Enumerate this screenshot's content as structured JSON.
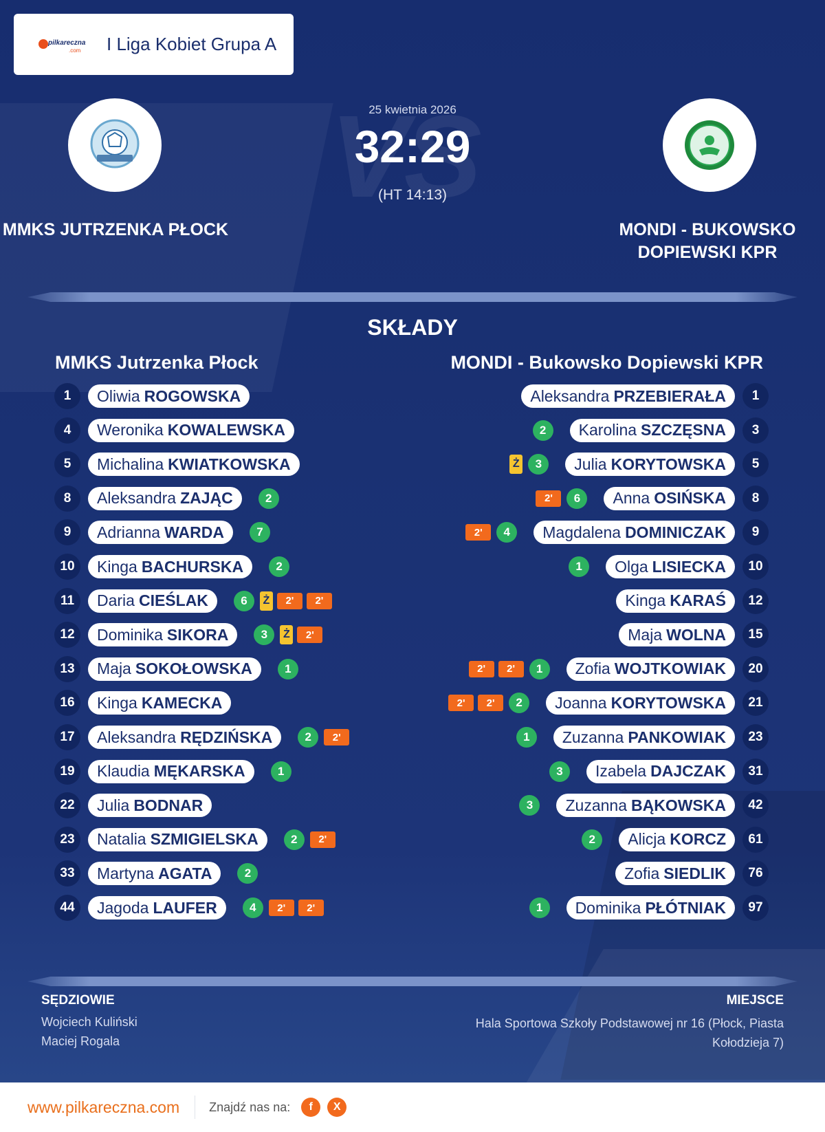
{
  "brand": {
    "logo_text": "pilkareczna",
    "logo_sub": ".com"
  },
  "league": {
    "name": "I Liga Kobiet Grupa A"
  },
  "match": {
    "date": "25 kwietnia 2026",
    "score": "32:29",
    "halftime": "(HT 14:13)",
    "vs_text": "VS"
  },
  "teams": {
    "home": {
      "name": "MMKS JUTRZENKA PŁOCK",
      "roster_title": "MMKS Jutrzenka Płock"
    },
    "away": {
      "name": "MONDI - BUKOWSKO DOPIEWSKI KPR",
      "roster_title": "MONDI - Bukowsko Dopiewski KPR"
    }
  },
  "lineups_title": "SKŁADY",
  "home_players": [
    {
      "number": "1",
      "first": "Oliwia",
      "last": "ROGOWSKA",
      "goals": null,
      "yellow": null,
      "suspensions": []
    },
    {
      "number": "4",
      "first": "Weronika",
      "last": "KOWALEWSKA",
      "goals": null,
      "yellow": null,
      "suspensions": []
    },
    {
      "number": "5",
      "first": "Michalina",
      "last": "KWIATKOWSKA",
      "goals": null,
      "yellow": null,
      "suspensions": []
    },
    {
      "number": "8",
      "first": "Aleksandra",
      "last": "ZAJĄC",
      "goals": "2",
      "yellow": null,
      "suspensions": []
    },
    {
      "number": "9",
      "first": "Adrianna",
      "last": "WARDA",
      "goals": "7",
      "yellow": null,
      "suspensions": []
    },
    {
      "number": "10",
      "first": "Kinga",
      "last": "BACHURSKA",
      "goals": "2",
      "yellow": null,
      "suspensions": []
    },
    {
      "number": "11",
      "first": "Daria",
      "last": "CIEŚLAK",
      "goals": "6",
      "yellow": "Ż",
      "suspensions": [
        "2'",
        "2'"
      ]
    },
    {
      "number": "12",
      "first": "Dominika",
      "last": "SIKORA",
      "goals": "3",
      "yellow": "Ż",
      "suspensions": [
        "2'"
      ]
    },
    {
      "number": "13",
      "first": "Maja",
      "last": "SOKOŁOWSKA",
      "goals": "1",
      "yellow": null,
      "suspensions": []
    },
    {
      "number": "16",
      "first": "Kinga",
      "last": "KAMECKA",
      "goals": null,
      "yellow": null,
      "suspensions": []
    },
    {
      "number": "17",
      "first": "Aleksandra",
      "last": "RĘDZIŃSKA",
      "goals": "2",
      "yellow": null,
      "suspensions": [
        "2'"
      ]
    },
    {
      "number": "19",
      "first": "Klaudia",
      "last": "MĘKARSKA",
      "goals": "1",
      "yellow": null,
      "suspensions": []
    },
    {
      "number": "22",
      "first": "Julia",
      "last": "BODNAR",
      "goals": null,
      "yellow": null,
      "suspensions": []
    },
    {
      "number": "23",
      "first": "Natalia",
      "last": "SZMIGIELSKA",
      "goals": "2",
      "yellow": null,
      "suspensions": [
        "2'"
      ]
    },
    {
      "number": "33",
      "first": "Martyna",
      "last": "AGATA",
      "goals": "2",
      "yellow": null,
      "suspensions": []
    },
    {
      "number": "44",
      "first": "Jagoda",
      "last": "LAUFER",
      "goals": "4",
      "yellow": null,
      "suspensions": [
        "2'",
        "2'"
      ]
    }
  ],
  "away_players": [
    {
      "number": "1",
      "first": "Aleksandra",
      "last": "PRZEBIERAŁA",
      "goals": null,
      "yellow": null,
      "suspensions": []
    },
    {
      "number": "3",
      "first": "Karolina",
      "last": "SZCZĘSNA",
      "goals": "2",
      "yellow": null,
      "suspensions": []
    },
    {
      "number": "5",
      "first": "Julia",
      "last": "KORYTOWSKA",
      "goals": "3",
      "yellow": "Ż",
      "suspensions": []
    },
    {
      "number": "8",
      "first": "Anna",
      "last": "OSIŃSKA",
      "goals": "6",
      "yellow": null,
      "suspensions": [
        "2'"
      ]
    },
    {
      "number": "9",
      "first": "Magdalena",
      "last": "DOMINICZAK",
      "goals": "4",
      "yellow": null,
      "suspensions": [
        "2'"
      ]
    },
    {
      "number": "10",
      "first": "Olga",
      "last": "LISIECKA",
      "goals": "1",
      "yellow": null,
      "suspensions": []
    },
    {
      "number": "12",
      "first": "Kinga",
      "last": "KARAŚ",
      "goals": null,
      "yellow": null,
      "suspensions": []
    },
    {
      "number": "15",
      "first": "Maja",
      "last": "WOLNA",
      "goals": null,
      "yellow": null,
      "suspensions": []
    },
    {
      "number": "20",
      "first": "Zofia",
      "last": "WOJTKOWIAK",
      "goals": "1",
      "yellow": null,
      "suspensions": [
        "2'",
        "2'"
      ]
    },
    {
      "number": "21",
      "first": "Joanna",
      "last": "KORYTOWSKA",
      "goals": "2",
      "yellow": null,
      "suspensions": [
        "2'",
        "2'"
      ]
    },
    {
      "number": "23",
      "first": "Zuzanna",
      "last": "PANKOWIAK",
      "goals": "1",
      "yellow": null,
      "suspensions": []
    },
    {
      "number": "31",
      "first": "Izabela",
      "last": "DAJCZAK",
      "goals": "3",
      "yellow": null,
      "suspensions": []
    },
    {
      "number": "42",
      "first": "Zuzanna",
      "last": "BĄKOWSKA",
      "goals": "3",
      "yellow": null,
      "suspensions": []
    },
    {
      "number": "61",
      "first": "Alicja",
      "last": "KORCZ",
      "goals": "2",
      "yellow": null,
      "suspensions": []
    },
    {
      "number": "76",
      "first": "Zofia",
      "last": "SIEDLIK",
      "goals": null,
      "yellow": null,
      "suspensions": []
    },
    {
      "number": "97",
      "first": "Dominika",
      "last": "PŁÓTNIAK",
      "goals": "1",
      "yellow": null,
      "suspensions": []
    }
  ],
  "referees": {
    "label": "SĘDZIOWIE",
    "names": [
      "Wojciech Kuliński",
      "Maciej Rogala"
    ]
  },
  "venue": {
    "label": "MIEJSCE",
    "text": "Hala Sportowa Szkoły Podstawowej nr 16 (Płock, Piasta Kołodzieja 7)"
  },
  "footer": {
    "url": "www.pilkareczna.com",
    "find_us": "Znajdź nas na:",
    "social": [
      {
        "icon": "facebook-icon",
        "glyph": "f"
      },
      {
        "icon": "x-icon",
        "glyph": "X"
      }
    ]
  },
  "colors": {
    "background": "#1a3173",
    "goal": "#2db260",
    "yellow_card": "#f5c430",
    "suspension": "#f26a1d",
    "accent": "#e96f1c"
  }
}
